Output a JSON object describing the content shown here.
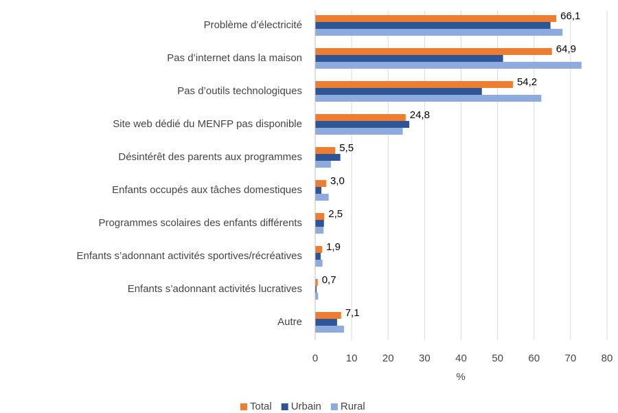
{
  "chart_data": {
    "type": "hbar",
    "categories": [
      "Problème d’électricité",
      "Pas d’internet dans la maison",
      "Pas d’outils technologiques",
      "Site web dédié du MENFP pas disponible",
      "Désintérêt des parents aux programmes",
      "Enfants occupés aux tâches domestiques",
      "Programmes scolaires des enfants différents",
      "Enfants s’adonnant activités sportives/récréatives",
      "Enfants s’adonnant activités lucratives",
      "Autre"
    ],
    "series": [
      {
        "name": "Total",
        "color": "#ed7d31",
        "values": [
          66.1,
          64.9,
          54.2,
          24.8,
          5.5,
          3.0,
          2.5,
          1.9,
          0.7,
          7.1
        ],
        "value_labels": [
          "66,1",
          "64,9",
          "54,2",
          "24,8",
          "5,5",
          "3,0",
          "2,5",
          "1,9",
          "0,7",
          "7,1"
        ]
      },
      {
        "name": "Urbain",
        "color": "#2f5597",
        "values": [
          64.5,
          51.5,
          45.7,
          25.8,
          6.9,
          1.7,
          2.4,
          1.5,
          0.4,
          6.0
        ]
      },
      {
        "name": "Rural",
        "color": "#8faadc",
        "values": [
          67.8,
          73.0,
          62.0,
          24.0,
          4.3,
          3.7,
          2.3,
          2.0,
          0.8,
          7.9
        ]
      }
    ],
    "x_label": "%",
    "xlim": [
      0,
      80
    ],
    "xticks": [
      0,
      10,
      20,
      30,
      40,
      50,
      60,
      70,
      80
    ],
    "grid": true,
    "legend": "bottom"
  }
}
